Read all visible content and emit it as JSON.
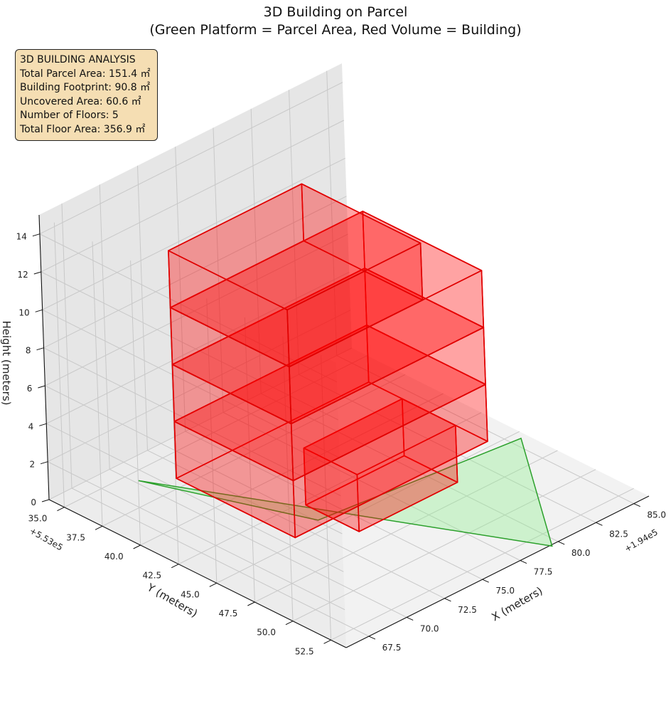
{
  "title_line1": "3D Building on Parcel",
  "title_line2": "(Green Platform = Parcel Area, Red Volume = Building)",
  "info_box": {
    "heading": "3D BUILDING ANALYSIS",
    "lines": [
      "Total Parcel Area: 151.4 ㎡",
      "Building Footprint: 90.8 ㎡",
      "Uncovered Area: 60.6 ㎡",
      "Number of Floors: 5",
      "Total Floor Area: 356.9 ㎡"
    ]
  },
  "colors": {
    "building_fill": "#ff0000",
    "building_edge": "#e00000",
    "parcel_fill": "#90ee90",
    "parcel_edge": "#2ca02c",
    "pane": "#f2f2f2",
    "grid": "#c8c8c8",
    "info_bg": "#f5deb3"
  },
  "chart_data": {
    "type": "3d-volume",
    "xlabel": "X (meters)",
    "ylabel": "Y (meters)",
    "zlabel": "Height (meters)",
    "x_offset_label": "+1.94e5",
    "y_offset_label": "+5.53e5",
    "x_ticks": [
      "67.5",
      "70.0",
      "72.5",
      "75.0",
      "77.5",
      "80.0",
      "82.5",
      "85.0"
    ],
    "y_ticks": [
      "35.0",
      "37.5",
      "40.0",
      "42.5",
      "45.0",
      "47.5",
      "50.0",
      "52.5"
    ],
    "z_ticks": [
      "0",
      "2",
      "4",
      "6",
      "8",
      "10",
      "12",
      "14"
    ],
    "xlim": [
      66.0,
      86.0
    ],
    "ylim": [
      34.0,
      53.5
    ],
    "zlim": [
      0,
      15
    ],
    "grid": true,
    "series": [
      {
        "name": "Parcel",
        "kind": "platform",
        "polygon": [
          [
            73.5,
            44.2
          ],
          [
            85.6,
            45.5
          ],
          [
            79.5,
            53.6
          ],
          [
            70.2,
            35.7
          ]
        ],
        "z": 0.0
      },
      {
        "name": "Building",
        "kind": "floors",
        "floors": [
          {
            "floor": 1,
            "x": [
              74.1,
              80.6
            ],
            "y": [
              42.8,
              46.3
            ],
            "z": [
              0.0,
              3.0
            ]
          },
          {
            "floor": 2,
            "x": [
              67.9,
              80.6
            ],
            "y": [
              40.6,
              48.4
            ],
            "z": [
              3.0,
              6.0
            ]
          },
          {
            "floor": 3,
            "x": [
              67.9,
              80.6
            ],
            "y": [
              40.6,
              48.4
            ],
            "z": [
              6.0,
              9.0
            ]
          },
          {
            "floor": 4,
            "x": [
              67.9,
              80.6
            ],
            "y": [
              40.6,
              48.4
            ],
            "z": [
              9.0,
              12.0
            ]
          },
          {
            "floor": 5,
            "x": [
              67.9,
              76.7
            ],
            "y": [
              40.6,
              48.4
            ],
            "z": [
              12.0,
              15.0
            ]
          }
        ]
      }
    ]
  }
}
